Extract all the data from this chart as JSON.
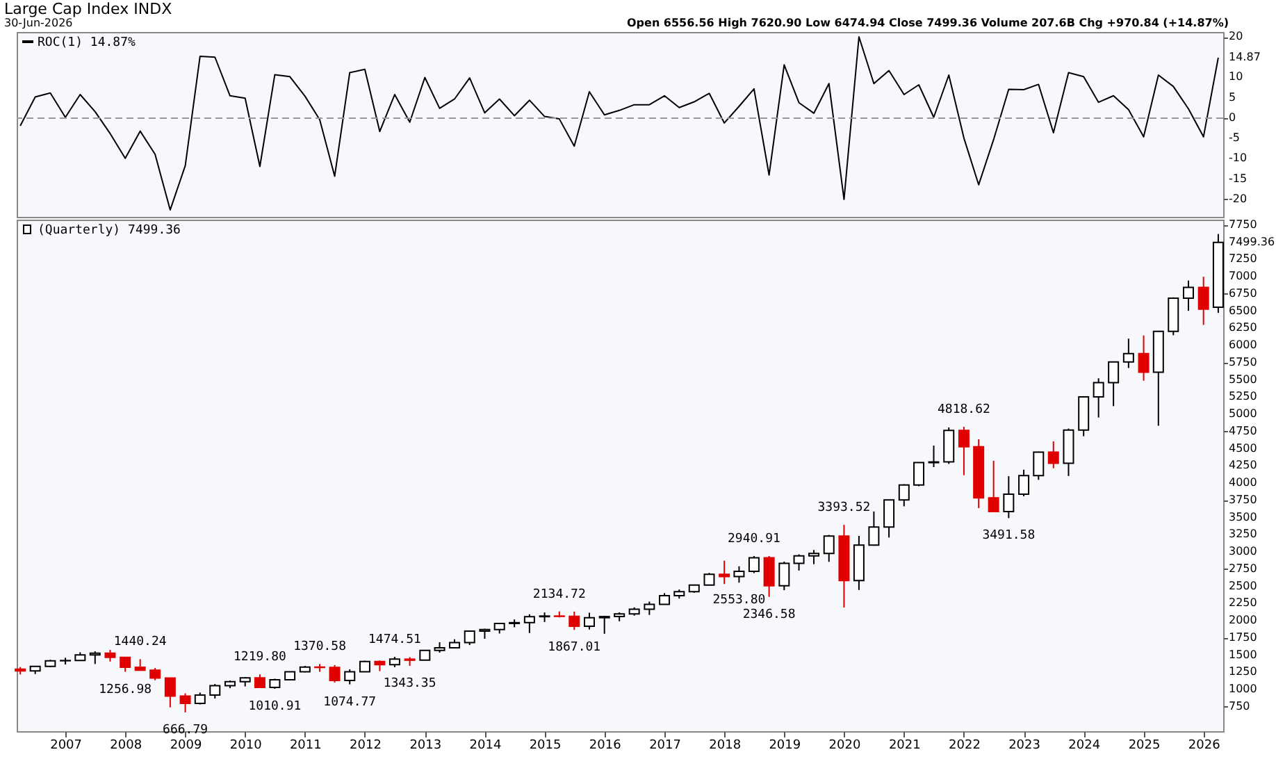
{
  "chart_data": [
    {
      "type": "line",
      "title": "Large Cap Index INDX",
      "subtitle": "30-Jun-2026",
      "annotations": [
        "Open 6556.56 High 7620.90 Low 6474.94 Close 7499.36 Volume 207.6B Chg +970.84 (+14.87%)"
      ],
      "x": [
        "2006-04",
        "2006-07",
        "2006-10",
        "2007-01",
        "2007-04",
        "2007-07",
        "2007-10",
        "2008-01",
        "2008-04",
        "2008-07",
        "2008-10",
        "2009-01",
        "2009-04",
        "2009-07",
        "2009-10",
        "2010-01",
        "2010-04",
        "2010-07",
        "2010-10",
        "2011-01",
        "2011-04",
        "2011-07",
        "2011-10",
        "2012-01",
        "2012-04",
        "2012-07",
        "2012-10",
        "2013-01",
        "2013-04",
        "2013-07",
        "2013-10",
        "2014-01",
        "2014-04",
        "2014-07",
        "2014-10",
        "2015-01",
        "2015-04",
        "2015-07",
        "2015-10",
        "2016-01",
        "2016-04",
        "2016-07",
        "2016-10",
        "2017-01",
        "2017-04",
        "2017-07",
        "2017-10",
        "2018-01",
        "2018-04",
        "2018-07",
        "2018-10",
        "2019-01",
        "2019-04",
        "2019-07",
        "2019-10",
        "2020-01",
        "2020-04",
        "2020-07",
        "2020-10",
        "2021-01",
        "2021-04",
        "2021-07",
        "2021-10",
        "2022-01",
        "2022-04",
        "2022-07",
        "2022-10",
        "2023-01",
        "2023-04",
        "2023-07",
        "2023-10",
        "2024-01",
        "2024-04",
        "2024-07",
        "2024-10",
        "2025-01",
        "2025-04",
        "2025-07",
        "2025-10",
        "2026-01",
        "2026-04"
      ],
      "series": [
        {
          "name": "ROC(1) 14.87%",
          "color": "#000000",
          "values": [
            -1.9,
            5.2,
            6.2,
            0.2,
            5.8,
            1.6,
            -3.8,
            -9.9,
            -3.2,
            -8.9,
            -22.6,
            -11.7,
            15.2,
            15.0,
            5.5,
            4.9,
            -11.9,
            10.7,
            10.2,
            5.4,
            -0.4,
            -14.3,
            11.2,
            12.0,
            -3.3,
            5.8,
            -1.0,
            10.0,
            2.4,
            4.7,
            9.9,
            1.3,
            4.7,
            0.6,
            4.4,
            0.4,
            -0.2,
            -6.9,
            6.5,
            0.8,
            1.9,
            3.3,
            3.3,
            5.5,
            2.6,
            4.0,
            6.1,
            -1.2,
            2.9,
            7.2,
            -14.0,
            13.1,
            3.8,
            1.2,
            8.5,
            -20.0,
            20.0,
            8.5,
            11.7,
            5.8,
            8.2,
            0.2,
            10.6,
            -4.9,
            -16.4,
            -5.3,
            7.1,
            7.0,
            8.3,
            -3.6,
            11.2,
            10.2,
            3.9,
            5.5,
            2.1,
            -4.6,
            10.6,
            7.8,
            2.3,
            -4.6,
            14.87
          ]
        }
      ],
      "xlim": [
        "2006-03-10",
        "2026-05-01"
      ],
      "ylim": [
        -24.3,
        21.2
      ],
      "yticks": [
        20,
        14.87,
        10,
        5,
        0,
        -5,
        -10,
        -15,
        -20
      ],
      "ref_lines": [
        {
          "axis": "y",
          "value": 0,
          "color": "#999999",
          "line_style": "dashed"
        }
      ],
      "legend": "top left",
      "tick_labels": "y",
      "grid": false
    },
    {
      "type": "candlestick",
      "annotations": [
        {
          "text": "1440.24",
          "x": "2008-04",
          "y": 1440.24
        },
        {
          "text": "1256.98",
          "x": "2008-01",
          "y": 1256.98
        },
        {
          "text": "666.79",
          "x": "2009-01",
          "y": 666.79
        },
        {
          "text": "1219.80",
          "x": "2010-04",
          "y": 1219.8
        },
        {
          "text": "1010.91",
          "x": "2010-07",
          "y": 1010.91
        },
        {
          "text": "1370.58",
          "x": "2011-04",
          "y": 1370.58
        },
        {
          "text": "1074.77",
          "x": "2011-10",
          "y": 1074.77
        },
        {
          "text": "1474.51",
          "x": "2012-07",
          "y": 1474.51
        },
        {
          "text": "1343.35",
          "x": "2012-10",
          "y": 1343.35
        },
        {
          "text": "2134.72",
          "x": "2015-04",
          "y": 2134.72
        },
        {
          "text": "1867.01",
          "x": "2015-07",
          "y": 1867.01
        },
        {
          "text": "2940.91",
          "x": "2018-07",
          "y": 2940.91
        },
        {
          "text": "2553.80",
          "x": "2018-04",
          "y": 2553.8
        },
        {
          "text": "2346.58",
          "x": "2018-10",
          "y": 2346.58
        },
        {
          "text": "3393.52",
          "x": "2020-01",
          "y": 3393.52
        },
        {
          "text": "4818.62",
          "x": "2022-01",
          "y": 4818.62
        },
        {
          "text": "3491.58",
          "x": "2022-10",
          "y": 3491.58
        }
      ],
      "x": [
        "2006-04",
        "2006-07",
        "2006-10",
        "2007-01",
        "2007-04",
        "2007-07",
        "2007-10",
        "2008-01",
        "2008-04",
        "2008-07",
        "2008-10",
        "2009-01",
        "2009-04",
        "2009-07",
        "2009-10",
        "2010-01",
        "2010-04",
        "2010-07",
        "2010-10",
        "2011-01",
        "2011-04",
        "2011-07",
        "2011-10",
        "2012-01",
        "2012-04",
        "2012-07",
        "2012-10",
        "2013-01",
        "2013-04",
        "2013-07",
        "2013-10",
        "2014-01",
        "2014-04",
        "2014-07",
        "2014-10",
        "2015-01",
        "2015-04",
        "2015-07",
        "2015-10",
        "2016-01",
        "2016-04",
        "2016-07",
        "2016-10",
        "2017-01",
        "2017-04",
        "2017-07",
        "2017-10",
        "2018-01",
        "2018-04",
        "2018-07",
        "2018-10",
        "2019-01",
        "2019-04",
        "2019-07",
        "2019-10",
        "2020-01",
        "2020-04",
        "2020-07",
        "2020-10",
        "2021-01",
        "2021-04",
        "2021-07",
        "2021-10",
        "2022-01",
        "2022-04",
        "2022-07",
        "2022-10",
        "2023-01",
        "2023-04",
        "2023-07",
        "2023-10",
        "2024-01",
        "2024-04",
        "2024-07",
        "2024-10",
        "2025-01",
        "2025-04",
        "2025-07",
        "2025-10",
        "2026-01",
        "2026-04"
      ],
      "series": [
        {
          "name": "(Quarterly) 7499.36",
          "color": "#000000",
          "colors": [
            "#e00000",
            "#000000",
            "#000000",
            "#000000",
            "#000000",
            "#000000",
            "#e00000",
            "#e00000",
            "#e00000",
            "#e00000",
            "#e00000",
            "#e00000",
            "#000000",
            "#000000",
            "#000000",
            "#000000",
            "#e00000",
            "#000000",
            "#000000",
            "#000000",
            "#e00000",
            "#e00000",
            "#000000",
            "#000000",
            "#e00000",
            "#000000",
            "#e00000",
            "#000000",
            "#000000",
            "#000000",
            "#000000",
            "#000000",
            "#000000",
            "#000000",
            "#000000",
            "#000000",
            "#e00000",
            "#e00000",
            "#000000",
            "#000000",
            "#000000",
            "#000000",
            "#000000",
            "#000000",
            "#000000",
            "#000000",
            "#000000",
            "#e00000",
            "#000000",
            "#000000",
            "#e00000",
            "#000000",
            "#000000",
            "#000000",
            "#000000",
            "#e00000",
            "#000000",
            "#000000",
            "#000000",
            "#000000",
            "#000000",
            "#000000",
            "#000000",
            "#e00000",
            "#e00000",
            "#e00000",
            "#000000",
            "#000000",
            "#000000",
            "#e00000",
            "#000000",
            "#000000",
            "#000000",
            "#000000",
            "#000000",
            "#e00000",
            "#000000",
            "#000000",
            "#000000",
            "#e00000",
            "#000000"
          ],
          "ohlc": [
            [
              1295,
              1327,
              1219,
              1270
            ],
            [
              1270,
              1340,
              1225,
              1336
            ],
            [
              1336,
              1432,
              1327,
              1418
            ],
            [
              1418,
              1462,
              1364,
              1421
            ],
            [
              1421,
              1541,
              1416,
              1503
            ],
            [
              1503,
              1556,
              1371,
              1527
            ],
            [
              1527,
              1576,
              1406,
              1468
            ],
            [
              1468,
              1472,
              1256.98,
              1323
            ],
            [
              1323,
              1440.24,
              1272,
              1280
            ],
            [
              1280,
              1313,
              1134,
              1166
            ],
            [
              1166,
              1167,
              741,
              903
            ],
            [
              903,
              944,
              666.79,
              798
            ],
            [
              798,
              956,
              783,
              919
            ],
            [
              919,
              1080,
              869,
              1057
            ],
            [
              1057,
              1130,
              1020,
              1115
            ],
            [
              1115,
              1181,
              1045,
              1169
            ],
            [
              1169,
              1219.8,
              1028,
              1031
            ],
            [
              1031,
              1157,
              1010.91,
              1141
            ],
            [
              1141,
              1263,
              1132,
              1258
            ],
            [
              1258,
              1344,
              1249,
              1326
            ],
            [
              1326,
              1370.58,
              1258,
              1321
            ],
            [
              1321,
              1356,
              1102,
              1131
            ],
            [
              1131,
              1293,
              1074.77,
              1258
            ],
            [
              1258,
              1419,
              1258,
              1408
            ],
            [
              1408,
              1422,
              1267,
              1362
            ],
            [
              1362,
              1474.51,
              1325,
              1441
            ],
            [
              1441,
              1471,
              1343.35,
              1426
            ],
            [
              1426,
              1570,
              1426,
              1569
            ],
            [
              1569,
              1687,
              1536,
              1606
            ],
            [
              1606,
              1730,
              1605,
              1682
            ],
            [
              1682,
              1849,
              1646,
              1848
            ],
            [
              1848,
              1884,
              1738,
              1872
            ],
            [
              1872,
              1968,
              1814,
              1960
            ],
            [
              1960,
              2019,
              1905,
              1972
            ],
            [
              1972,
              2094,
              1821,
              2059
            ],
            [
              2059,
              2120,
              1981,
              2068
            ],
            [
              2068,
              2134.72,
              2048,
              2063
            ],
            [
              2063,
              2133,
              1867.01,
              1920
            ],
            [
              1920,
              2116,
              1872,
              2044
            ],
            [
              2044,
              2072,
              1810,
              2060
            ],
            [
              2060,
              2121,
              1992,
              2099
            ],
            [
              2099,
              2194,
              2074,
              2168
            ],
            [
              2168,
              2278,
              2084,
              2239
            ],
            [
              2239,
              2401,
              2239,
              2363
            ],
            [
              2363,
              2454,
              2322,
              2423
            ],
            [
              2423,
              2519,
              2406,
              2519
            ],
            [
              2519,
              2695,
              2519,
              2674
            ],
            [
              2674,
              2873,
              2533,
              2641
            ],
            [
              2641,
              2791,
              2553.8,
              2718
            ],
            [
              2718,
              2940.91,
              2692,
              2914
            ],
            [
              2914,
              2940,
              2346.58,
              2507
            ],
            [
              2507,
              2860,
              2444,
              2834
            ],
            [
              2834,
              2964,
              2729,
              2942
            ],
            [
              2942,
              3028,
              2822,
              2977
            ],
            [
              2977,
              3248,
              2856,
              3231
            ],
            [
              3231,
              3393.52,
              2192,
              2585
            ],
            [
              2585,
              3233,
              2447,
              3100
            ],
            [
              3100,
              3588,
              3090,
              3363
            ],
            [
              3363,
              3760,
              3209,
              3756
            ],
            [
              3756,
              3984,
              3663,
              3973
            ],
            [
              3973,
              4302,
              3955,
              4298
            ],
            [
              4298,
              4546,
              4233,
              4308
            ],
            [
              4308,
              4809,
              4279,
              4766
            ],
            [
              4766,
              4818.62,
              4115,
              4530
            ],
            [
              4530,
              4637,
              3637,
              3785
            ],
            [
              3785,
              4325,
              3584,
              3586
            ],
            [
              3586,
              4101,
              3491.58,
              3840
            ],
            [
              3840,
              4195,
              3809,
              4109
            ],
            [
              4109,
              4458,
              4048,
              4450
            ],
            [
              4450,
              4607,
              4216,
              4288
            ],
            [
              4288,
              4793,
              4104,
              4770
            ],
            [
              4770,
              5265,
              4682,
              5254
            ],
            [
              5254,
              5524,
              4954,
              5460
            ],
            [
              5460,
              5767,
              5119,
              5762
            ],
            [
              5762,
              6100,
              5674,
              5882
            ],
            [
              5882,
              6147,
              5489,
              5612
            ],
            [
              5612,
              6215,
              4835,
              6205
            ],
            [
              6205,
              6700,
              6150,
              6688
            ],
            [
              6688,
              6945,
              6505,
              6845
            ],
            [
              6845,
              7000,
              6300,
              6528.52
            ],
            [
              6556.56,
              7620.9,
              6474.94,
              7499.36
            ]
          ]
        }
      ],
      "xlim": [
        "2006-03-10",
        "2026-05-01"
      ],
      "xticks": [
        "2007",
        "2008",
        "2009",
        "2010",
        "2011",
        "2012",
        "2013",
        "2014",
        "2015",
        "2016",
        "2017",
        "2018",
        "2019",
        "2020",
        "2021",
        "2022",
        "2023",
        "2024",
        "2025",
        "2026"
      ],
      "ylim": [
        394,
        7830
      ],
      "yticks": [
        7750,
        7499.36,
        7250,
        7000,
        6750,
        6500,
        6250,
        6000,
        5750,
        5500,
        5250,
        5000,
        4750,
        4500,
        4250,
        4000,
        3750,
        3500,
        3250,
        3000,
        2750,
        2500,
        2250,
        2000,
        1750,
        1500,
        1250,
        1000,
        750
      ],
      "legend": "top left",
      "grid": false
    }
  ]
}
